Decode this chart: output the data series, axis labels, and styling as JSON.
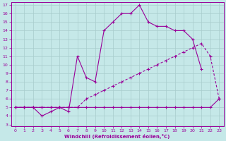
{
  "xlabel": "Windchill (Refroidissement éolien,°C)",
  "xlim": [
    -0.5,
    23.5
  ],
  "ylim": [
    2.8,
    17.3
  ],
  "xticks": [
    0,
    1,
    2,
    3,
    4,
    5,
    6,
    7,
    8,
    9,
    10,
    11,
    12,
    13,
    14,
    15,
    16,
    17,
    18,
    19,
    20,
    21,
    22,
    23
  ],
  "yticks": [
    3,
    4,
    5,
    6,
    7,
    8,
    9,
    10,
    11,
    12,
    13,
    14,
    15,
    16,
    17
  ],
  "bg_color": "#c5e8e8",
  "grid_color": "#a8cccc",
  "line_color": "#990099",
  "line_bottom_x": [
    0,
    1,
    2,
    3,
    4,
    5,
    6,
    7,
    8,
    9,
    10,
    11,
    12,
    13,
    14,
    15,
    16,
    17,
    18,
    19,
    20,
    21,
    22,
    23
  ],
  "line_bottom_y": [
    5,
    5,
    5,
    5,
    5,
    5,
    5,
    5,
    5,
    5,
    5,
    5,
    5,
    5,
    5,
    5,
    5,
    5,
    5,
    5,
    5,
    5,
    5,
    6
  ],
  "line_diag_x": [
    0,
    1,
    2,
    3,
    4,
    5,
    6,
    7,
    8,
    9,
    10,
    11,
    12,
    13,
    14,
    15,
    16,
    17,
    18,
    19,
    20,
    21,
    22,
    23
  ],
  "line_diag_y": [
    5,
    5,
    5,
    5,
    5,
    5,
    5,
    5,
    6,
    6.5,
    7,
    7.5,
    8,
    8.5,
    9,
    9.5,
    10,
    10.5,
    11,
    11.5,
    12,
    12.5,
    11,
    6
  ],
  "line_peak_x": [
    0,
    1,
    2,
    3,
    4,
    5,
    6,
    7,
    8,
    9,
    10,
    11,
    12,
    13,
    14,
    15,
    16,
    17,
    18,
    19,
    20,
    21,
    22,
    23
  ],
  "line_peak_y": [
    5,
    5,
    5,
    4,
    4.5,
    5,
    4.5,
    11,
    8.5,
    8,
    14,
    15,
    16,
    16,
    17,
    15,
    14.5,
    14.5,
    14,
    14,
    13,
    9.5,
    null,
    6
  ]
}
